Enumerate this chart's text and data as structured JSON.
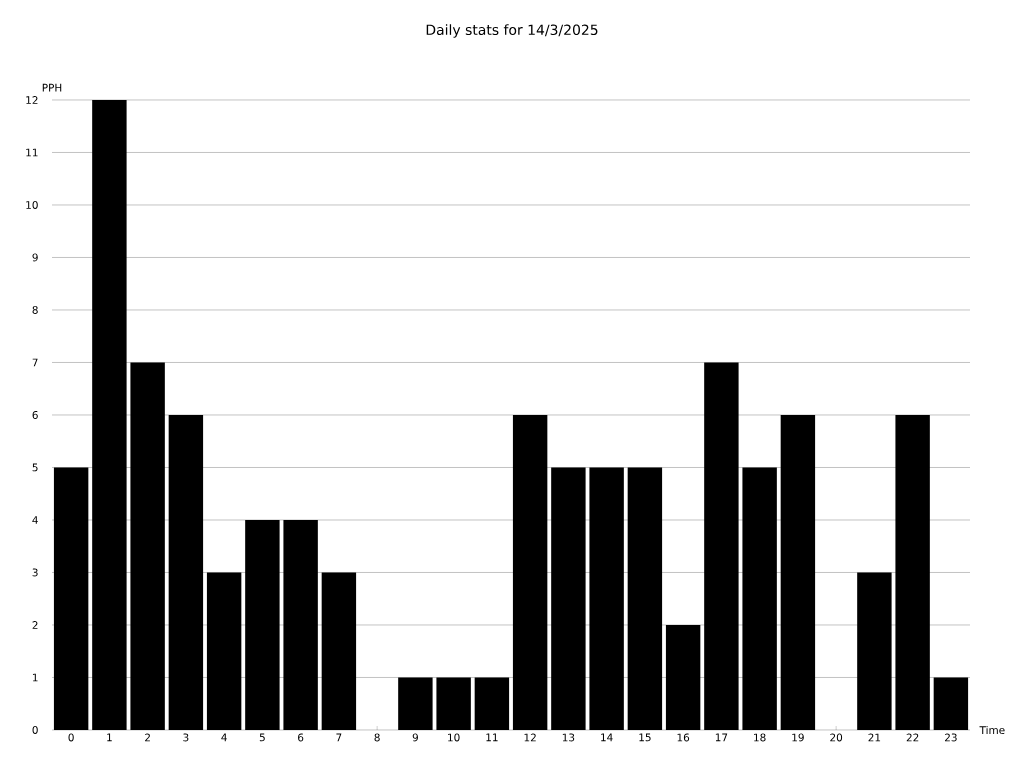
{
  "chart_data": {
    "type": "bar",
    "title": "Daily stats for 14/3/2025",
    "xlabel": "Time",
    "ylabel": "PPH",
    "categories": [
      "0",
      "1",
      "2",
      "3",
      "4",
      "5",
      "6",
      "7",
      "8",
      "9",
      "10",
      "11",
      "12",
      "13",
      "14",
      "15",
      "16",
      "17",
      "18",
      "19",
      "20",
      "21",
      "22",
      "23"
    ],
    "values": [
      5,
      12,
      7,
      6,
      3,
      4,
      4,
      3,
      0,
      1,
      1,
      1,
      6,
      5,
      5,
      5,
      2,
      7,
      5,
      6,
      0,
      3,
      6,
      1
    ],
    "color": "#000000",
    "ylim": [
      0,
      12
    ],
    "yticks": [
      0,
      1,
      2,
      3,
      4,
      5,
      6,
      7,
      8,
      9,
      10,
      11,
      12
    ],
    "grid": "y"
  }
}
